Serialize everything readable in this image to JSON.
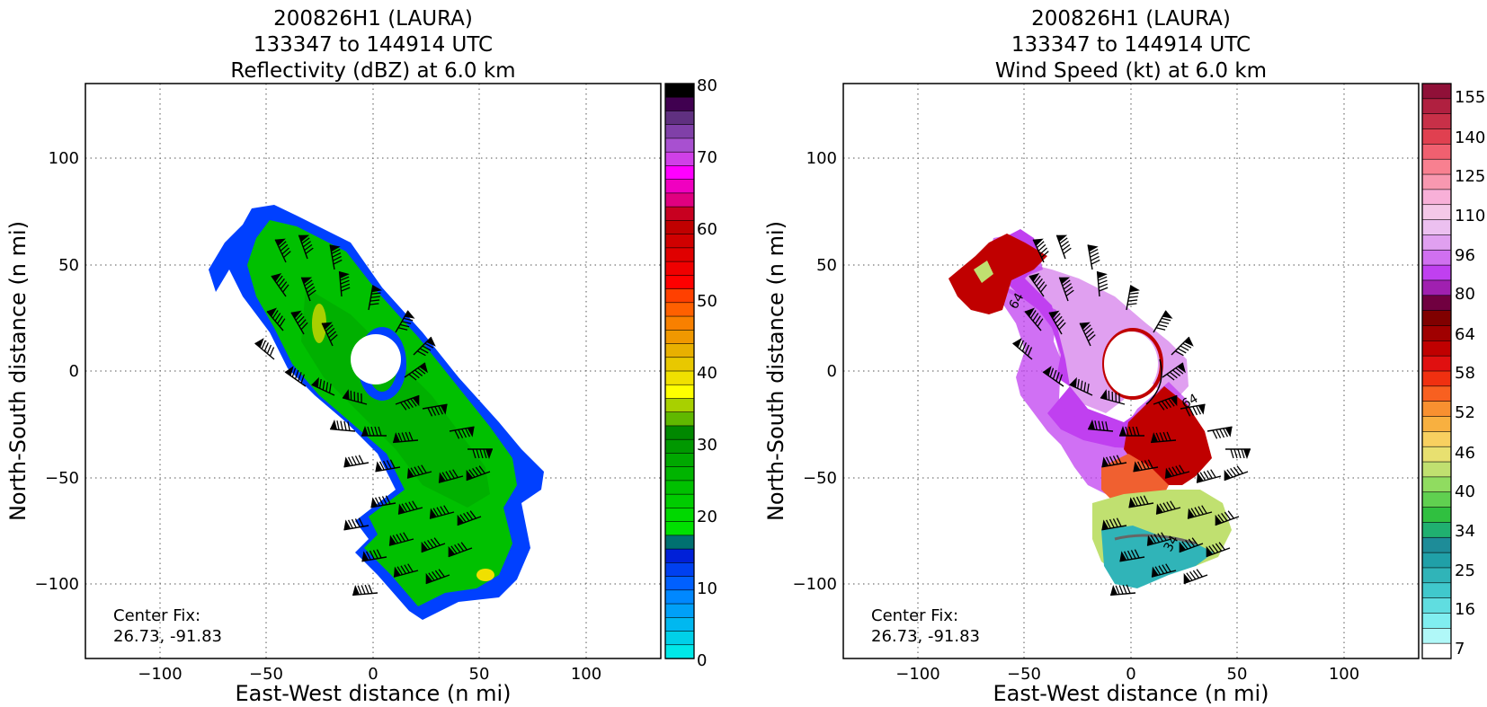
{
  "chart_data": [
    {
      "type": "heatmap",
      "title": [
        "200826H1 (LAURA)",
        "133347 to 144914 UTC",
        "Reflectivity (dBZ) at 6.0 km"
      ],
      "xlabel": "East-West distance (n mi)",
      "ylabel": "North-South distance (n mi)",
      "xlim": [
        -135,
        135
      ],
      "ylim": [
        -135,
        135
      ],
      "xticks": [
        -100,
        -50,
        0,
        50,
        100
      ],
      "yticks": [
        -100,
        -50,
        0,
        50,
        100
      ],
      "xticklabels": [
        "−100",
        "−50",
        "0",
        "50",
        "100"
      ],
      "yticklabels": [
        "−100",
        "−50",
        "0",
        "50",
        "100"
      ],
      "grid": true,
      "annotation": [
        "Center Fix:",
        "26.73, -91.83"
      ],
      "colorbar": {
        "min": 0,
        "max": 80,
        "ticks": [
          0,
          10,
          20,
          30,
          40,
          50,
          60,
          70,
          80
        ],
        "ticklabels": [
          "0",
          "10",
          "20",
          "30",
          "40",
          "50",
          "60",
          "70",
          "80"
        ],
        "colors": [
          "#00e8e8",
          "#00d0e8",
          "#00b8f0",
          "#00a0f8",
          "#0088ff",
          "#0060ff",
          "#0040f0",
          "#0020d8",
          "#007070",
          "#00e000",
          "#00d800",
          "#00cc00",
          "#00c000",
          "#00b400",
          "#00a800",
          "#009800",
          "#008800",
          "#60b800",
          "#a8d000",
          "#ffff00",
          "#f0e000",
          "#e8c800",
          "#e8b000",
          "#f09800",
          "#f88000",
          "#ff6000",
          "#ff4000",
          "#ff0000",
          "#f00000",
          "#e00000",
          "#d00000",
          "#c00000",
          "#c80020",
          "#e00080",
          "#f000c0",
          "#ff00ff",
          "#d040e8",
          "#a850d0",
          "#8040a8",
          "#603080",
          "#400050",
          "#000000"
        ]
      }
    },
    {
      "type": "heatmap",
      "title": [
        "200826H1 (LAURA)",
        "133347 to 144914 UTC",
        "Wind Speed (kt) at 6.0 km"
      ],
      "xlabel": "East-West distance (n mi)",
      "ylabel": "North-South distance (n mi)",
      "xlim": [
        -135,
        135
      ],
      "ylim": [
        -135,
        135
      ],
      "xticks": [
        -100,
        -50,
        0,
        50,
        100
      ],
      "yticks": [
        -100,
        -50,
        0,
        50,
        100
      ],
      "xticklabels": [
        "−100",
        "−50",
        "0",
        "50",
        "100"
      ],
      "yticklabels": [
        "−100",
        "−50",
        "0",
        "50",
        "100"
      ],
      "grid": true,
      "annotation": [
        "Center Fix:",
        "26.73, -91.83"
      ],
      "contour_labels": [
        "64",
        "64",
        "34"
      ],
      "colorbar": {
        "ticklabels": [
          "7",
          "16",
          "25",
          "34",
          "40",
          "46",
          "52",
          "58",
          "64",
          "80",
          "96",
          "110",
          "125",
          "140",
          "155"
        ],
        "colors": [
          "#ffffff",
          "#b0f8f8",
          "#80eef0",
          "#60dde0",
          "#40c8cc",
          "#30b4b8",
          "#20a0a8",
          "#1e8c98",
          "#20b070",
          "#30c040",
          "#60d050",
          "#90dc60",
          "#c0e070",
          "#e8e070",
          "#f8d060",
          "#f8b040",
          "#f89030",
          "#f86020",
          "#f03010",
          "#e01010",
          "#c00000",
          "#a00000",
          "#800000",
          "#700040",
          "#a020b0",
          "#c040f0",
          "#d070f0",
          "#e0a0f0",
          "#ecc0f0",
          "#f4c8e8",
          "#f8b0d8",
          "#f898b0",
          "#f88090",
          "#f06070",
          "#e04050",
          "#c83048",
          "#b02040",
          "#901038"
        ]
      },
      "legend": ""
    }
  ]
}
